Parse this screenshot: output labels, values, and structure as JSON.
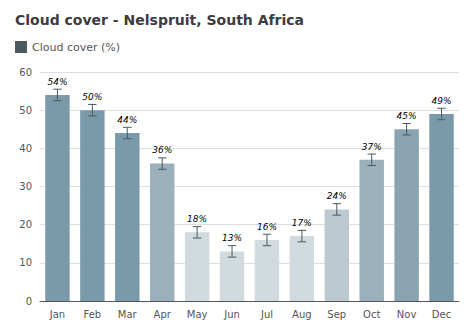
{
  "chart_data": {
    "type": "bar",
    "title": "Cloud cover - Nelspruit, South Africa",
    "categories": [
      "Jan",
      "Feb",
      "Mar",
      "Apr",
      "May",
      "Jun",
      "Jul",
      "Aug",
      "Sep",
      "Oct",
      "Nov",
      "Dec"
    ],
    "series": [
      {
        "name": "Cloud cover (%)",
        "color": "#4a5a60",
        "colors": [
          "#7a9aaa",
          "#7a9aaa",
          "#7a9aaa",
          "#9ab0bc",
          "#d0dadf",
          "#d0dadf",
          "#d0dadf",
          "#d0dadf",
          "#bcc9d0",
          "#9ab0bc",
          "#8aa3b0",
          "#7a9aaa"
        ],
        "values": [
          54,
          50,
          44,
          36,
          18,
          13,
          16,
          17,
          24,
          37,
          45,
          49
        ],
        "value_labels": [
          "54%",
          "50%",
          "44%",
          "36%",
          "18%",
          "13%",
          "16%",
          "17%",
          "24%",
          "37%",
          "45%",
          "49%"
        ],
        "errors": [
          1.5,
          1.5,
          1.5,
          1.5,
          1.5,
          1.5,
          1.5,
          1.5,
          1.5,
          1.5,
          1.5,
          1.5
        ]
      }
    ],
    "ylim": [
      0,
      60
    ],
    "yticks": [
      0,
      10,
      20,
      30,
      40,
      50,
      60
    ],
    "grid": true,
    "legend": "upper left",
    "data_labels": true
  }
}
